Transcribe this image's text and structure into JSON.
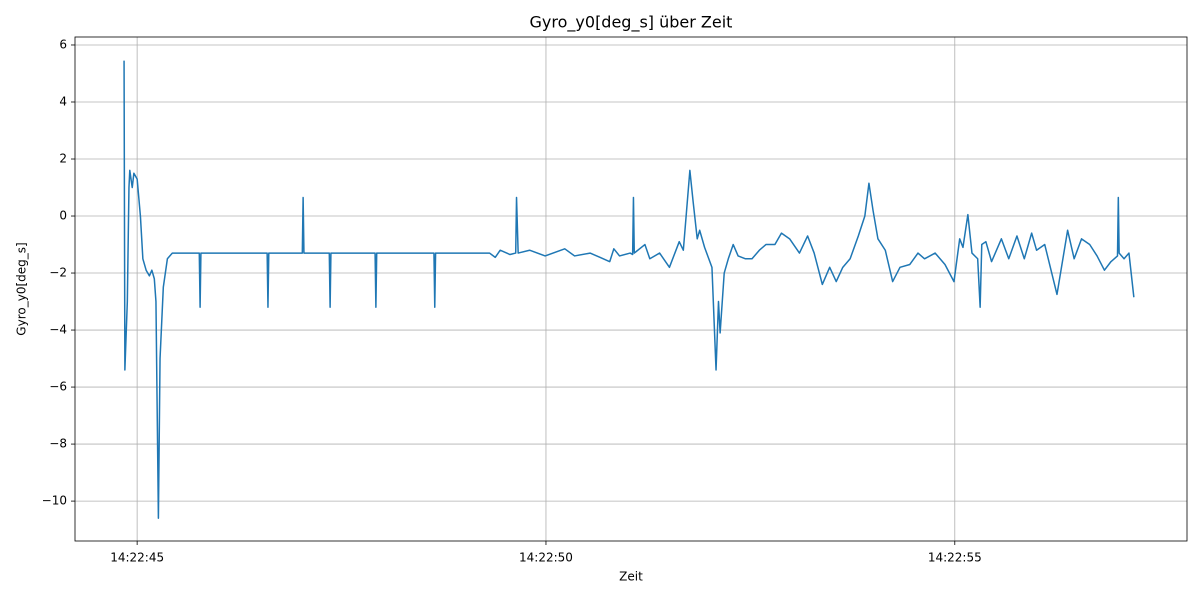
{
  "chart_data": {
    "type": "line",
    "title": "Gyro_y0[deg_s] über Zeit",
    "xlabel": "Zeit",
    "ylabel": "Gyro_y0[deg_s]",
    "x": [
      "14:22:44.84",
      "14:22:44.85",
      "14:22:44.88",
      "14:22:44.90",
      "14:22:44.91",
      "14:22:44.94",
      "14:22:44.96",
      "14:22:45.00",
      "14:22:45.04",
      "14:22:45.07",
      "14:22:45.11",
      "14:22:45.15",
      "14:22:45.18",
      "14:22:45.21",
      "14:22:45.23",
      "14:22:45.26",
      "14:22:45.28",
      "14:22:45.32",
      "14:22:45.37",
      "14:22:45.43",
      "14:22:45.76",
      "14:22:45.77",
      "14:22:45.78",
      "14:22:46.59",
      "14:22:46.60",
      "14:22:46.61",
      "14:22:47.02",
      "14:22:47.03",
      "14:22:47.04",
      "14:22:47.35",
      "14:22:47.36",
      "14:22:47.37",
      "14:22:47.91",
      "14:22:47.92",
      "14:22:47.93",
      "14:22:48.63",
      "14:22:48.64",
      "14:22:48.65",
      "14:22:49.31",
      "14:22:49.38",
      "14:22:49.44",
      "14:22:49.56",
      "14:22:49.63",
      "14:22:49.64",
      "14:22:49.66",
      "14:22:49.80",
      "14:22:49.99",
      "14:22:50.23",
      "14:22:50.35",
      "14:22:50.54",
      "14:22:50.66",
      "14:22:50.78",
      "14:22:50.83",
      "14:22:50.90",
      "14:22:51.03",
      "14:22:51.06",
      "14:22:51.07",
      "14:22:51.08",
      "14:22:51.21",
      "14:22:51.27",
      "14:22:51.39",
      "14:22:51.51",
      "14:22:51.63",
      "14:22:51.68",
      "14:22:51.76",
      "14:22:51.80",
      "14:22:51.85",
      "14:22:51.88",
      "14:22:51.94",
      "14:22:52.03",
      "14:22:52.08",
      "14:22:52.11",
      "14:22:52.13",
      "14:22:52.18",
      "14:22:52.23",
      "14:22:52.29",
      "14:22:52.35",
      "14:22:52.44",
      "14:22:52.52",
      "14:22:52.61",
      "14:22:52.69",
      "14:22:52.80",
      "14:22:52.88",
      "14:22:52.98",
      "14:22:53.10",
      "14:22:53.20",
      "14:22:53.28",
      "14:22:53.38",
      "14:22:53.47",
      "14:22:53.55",
      "14:22:53.63",
      "14:22:53.72",
      "14:22:53.82",
      "14:22:53.90",
      "14:22:53.95",
      "14:22:54.00",
      "14:22:54.06",
      "14:22:54.15",
      "14:22:54.24",
      "14:22:54.33",
      "14:22:54.45",
      "14:22:54.55",
      "14:22:54.63",
      "14:22:54.76",
      "14:22:54.88",
      "14:22:54.99",
      "14:22:55.06",
      "14:22:55.10",
      "14:22:55.16",
      "14:22:55.21",
      "14:22:55.28",
      "14:22:55.31",
      "14:22:55.33",
      "14:22:55.38",
      "14:22:55.45",
      "14:22:55.57",
      "14:22:55.66",
      "14:22:55.76",
      "14:22:55.85",
      "14:22:55.94",
      "14:22:56.00",
      "14:22:56.10",
      "14:22:56.25",
      "14:22:56.38",
      "14:22:56.46",
      "14:22:56.55",
      "14:22:56.65",
      "14:22:56.74",
      "14:22:56.83",
      "14:22:56.91",
      "14:22:56.99",
      "14:22:57.00",
      "14:22:57.01",
      "14:22:57.07",
      "14:22:57.13",
      "14:22:57.19"
    ],
    "series": [
      {
        "name": "Gyro_y0[deg_s]",
        "color": "#1f77b4",
        "values": [
          5.45,
          -5.4,
          -3,
          1.0,
          1.6,
          1.0,
          1.5,
          1.3,
          0,
          -1.5,
          -1.9,
          -2.1,
          -1.9,
          -2.2,
          -3.0,
          -10.6,
          -5,
          -2.5,
          -1.5,
          -1.3,
          -1.3,
          -3.2,
          -1.3,
          -1.3,
          -3.2,
          -1.3,
          -1.3,
          0.65,
          -1.3,
          -1.3,
          -3.2,
          -1.3,
          -1.3,
          -3.2,
          -1.3,
          -1.3,
          -3.2,
          -1.3,
          -1.3,
          -1.45,
          -1.2,
          -1.35,
          -1.3,
          0.65,
          -1.3,
          -1.2,
          -1.4,
          -1.15,
          -1.4,
          -1.3,
          -1.45,
          -1.6,
          -1.15,
          -1.4,
          -1.3,
          -1.35,
          0.65,
          -1.3,
          -1.0,
          -1.5,
          -1.3,
          -1.8,
          -0.9,
          -1.2,
          1.6,
          0.5,
          -0.8,
          -0.5,
          -1.1,
          -1.8,
          -5.4,
          -3.0,
          -4.1,
          -2,
          -1.5,
          -1.0,
          -1.4,
          -1.5,
          -1.5,
          -1.2,
          -1.0,
          -1.0,
          -0.6,
          -0.8,
          -1.3,
          -0.7,
          -1.3,
          -2.4,
          -1.8,
          -2.3,
          -1.8,
          -1.5,
          -0.7,
          0,
          1.15,
          0.2,
          -0.8,
          -1.2,
          -2.3,
          -1.8,
          -1.7,
          -1.3,
          -1.5,
          -1.3,
          -1.7,
          -2.3,
          -0.8,
          -1.1,
          0.05,
          -1.3,
          -1.5,
          -3.2,
          -1.0,
          -0.9,
          -1.6,
          -0.8,
          -1.5,
          -0.7,
          -1.5,
          -0.6,
          -1.2,
          -1.0,
          -2.75,
          -0.5,
          -1.5,
          -0.8,
          -1.0,
          -1.4,
          -1.9,
          -1.6,
          -1.4,
          0.65,
          -1.3,
          -1.5,
          -1.3,
          -2.85
        ]
      }
    ],
    "xlim": [
      "14:22:44.24",
      "14:22:57.84"
    ],
    "xticks": [
      "14:22:45",
      "14:22:50",
      "14:22:55"
    ],
    "ylim": [
      -11.4,
      6.28
    ],
    "yticks": [
      {
        "value": -10,
        "label": "−10"
      },
      {
        "value": -8,
        "label": "−8"
      },
      {
        "value": -6,
        "label": "−6"
      },
      {
        "value": -4,
        "label": "−4"
      },
      {
        "value": -2,
        "label": "−2"
      },
      0,
      2,
      4,
      6
    ],
    "grid": true
  }
}
